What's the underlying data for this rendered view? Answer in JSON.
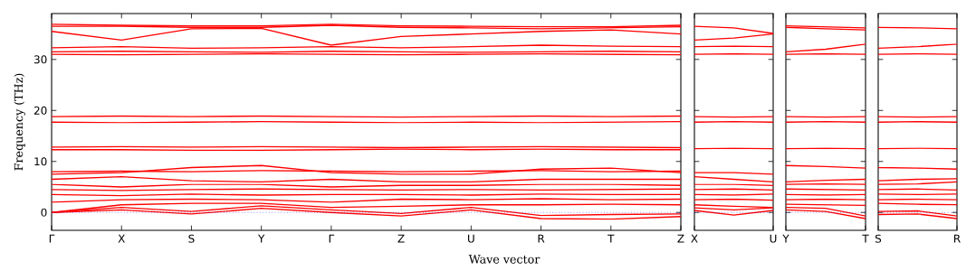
{
  "chart_data": [
    {
      "type": "line",
      "ylabel": "Frequency (THz)",
      "xlabel": "Wave vector",
      "color": "#ff0000",
      "marker": "none",
      "line_style": "solid",
      "categories": [
        "Γ",
        "X",
        "S",
        "Y",
        "Γ",
        "Z",
        "U",
        "R",
        "T",
        "Z"
      ],
      "ylim": [
        -3.5,
        39
      ],
      "yticks": [
        0,
        10,
        20,
        30
      ],
      "ref_lines": [
        {
          "axis": "y",
          "value": 0,
          "color": "#0000ff",
          "line_style": "dotted"
        }
      ],
      "series": [
        {
          "values": [
            0,
            0.5,
            -0.3,
            0.8,
            0,
            -0.7,
            0.5,
            -1.2,
            -1.3,
            -0.8
          ]
        },
        {
          "values": [
            0,
            1,
            0.2,
            1.3,
            0.5,
            -0.2,
            1,
            -0.6,
            -0.4,
            -0.3
          ]
        },
        {
          "values": [
            0,
            1.5,
            1.8,
            1.8,
            1,
            1.2,
            1.5,
            1.5,
            1.6,
            1.5
          ]
        },
        {
          "values": [
            2,
            2.5,
            2.6,
            2.5,
            2,
            2.6,
            2.5,
            2.7,
            2.5,
            2.6
          ]
        },
        {
          "values": [
            3.5,
            3.3,
            3.6,
            3.4,
            3.5,
            3.5,
            3.4,
            3.6,
            3.5,
            3.5
          ]
        },
        {
          "values": [
            4.5,
            4.3,
            4.5,
            4.6,
            4.5,
            4.4,
            4.5,
            4.4,
            4.5,
            4.6
          ]
        },
        {
          "values": [
            5.5,
            5,
            5.5,
            5.5,
            5,
            5.3,
            5.3,
            5.5,
            5.5,
            5.3
          ]
        },
        {
          "values": [
            6.5,
            7,
            6.2,
            6,
            6.5,
            6,
            6,
            6.5,
            6.5,
            6.5
          ]
        },
        {
          "values": [
            7.5,
            7.8,
            8.8,
            9.2,
            7.8,
            7.5,
            7.5,
            8.5,
            8.7,
            7.8
          ]
        },
        {
          "values": [
            8,
            8.1,
            8,
            8.2,
            8.1,
            8,
            8.1,
            8.2,
            8,
            8.1
          ]
        },
        {
          "values": [
            12.3,
            12.3,
            12.2,
            12.2,
            12.3,
            12.4,
            12.3,
            12.4,
            12.3,
            12.3
          ]
        },
        {
          "values": [
            12.8,
            12.9,
            12.8,
            12.9,
            12.8,
            12.7,
            12.8,
            12.9,
            12.8,
            12.7
          ]
        },
        {
          "values": [
            17.7,
            17.6,
            17.7,
            17.8,
            17.7,
            17.6,
            17.7,
            17.6,
            17.7,
            17.8
          ]
        },
        {
          "values": [
            18.8,
            18.9,
            18.8,
            18.9,
            18.8,
            18.7,
            18.8,
            18.9,
            18.8,
            18.9
          ]
        },
        {
          "values": [
            31,
            30.9,
            31,
            31.1,
            31,
            30.9,
            31,
            31.1,
            31,
            30.9
          ]
        },
        {
          "values": [
            31.5,
            31.6,
            31.5,
            31.4,
            31.6,
            31.5,
            31.4,
            31.5,
            31.6,
            31.5
          ]
        },
        {
          "values": [
            32.3,
            32.5,
            32.2,
            32.3,
            32.5,
            32.3,
            32.5,
            32.8,
            32.6,
            32.5
          ]
        },
        {
          "values": [
            35.5,
            33.8,
            36,
            36.1,
            32.8,
            34.5,
            35,
            35.5,
            35.8,
            35
          ]
        },
        {
          "values": [
            36.5,
            36.5,
            36.3,
            36.3,
            36.7,
            36.3,
            36.2,
            36,
            36.2,
            36.4
          ]
        },
        {
          "values": [
            36.9,
            36.7,
            36.6,
            36.6,
            36.9,
            36.6,
            36.5,
            36.4,
            36.4,
            36.7
          ]
        }
      ]
    },
    {
      "type": "line",
      "color": "#ff0000",
      "marker": "none",
      "line_style": "solid",
      "tick_labels": "x",
      "categories": [
        "X",
        null,
        "U"
      ],
      "ylim": [
        -3.5,
        39
      ],
      "yticks": [
        0,
        10,
        20,
        30
      ],
      "ref_lines": [
        {
          "axis": "y",
          "value": 0,
          "color": "#0000ff",
          "line_style": "dotted"
        }
      ],
      "series": [
        {
          "values": [
            0.4,
            -0.5,
            0.4
          ]
        },
        {
          "values": [
            0.9,
            0.5,
            0.9
          ]
        },
        {
          "values": [
            1.5,
            1.2,
            1
          ]
        },
        {
          "values": [
            2.5,
            2.6,
            2.4
          ]
        },
        {
          "values": [
            3.5,
            3.4,
            3.6
          ]
        },
        {
          "values": [
            4.5,
            4.6,
            4.4
          ]
        },
        {
          "values": [
            5.5,
            5.5,
            5.3
          ]
        },
        {
          "values": [
            7,
            6.5,
            6
          ]
        },
        {
          "values": [
            7.8,
            7.8,
            7.5
          ]
        },
        {
          "values": [
            12.5,
            12.6,
            12.5
          ]
        },
        {
          "values": [
            17.7,
            17.8,
            17.7
          ]
        },
        {
          "values": [
            18.8,
            18.7,
            18.8
          ]
        },
        {
          "values": [
            31,
            31.1,
            31
          ]
        },
        {
          "values": [
            32.5,
            32.6,
            32.5
          ]
        },
        {
          "values": [
            33.8,
            34.2,
            35
          ]
        },
        {
          "values": [
            36.5,
            36.2,
            35.1
          ]
        }
      ]
    },
    {
      "type": "line",
      "color": "#ff0000",
      "marker": "none",
      "line_style": "solid",
      "tick_labels": "x",
      "categories": [
        "Y",
        null,
        "T"
      ],
      "ylim": [
        -3.5,
        39
      ],
      "yticks": [
        0,
        10,
        20,
        30
      ],
      "ref_lines": [
        {
          "axis": "y",
          "value": 0,
          "color": "#0000ff",
          "line_style": "dotted"
        }
      ],
      "series": [
        {
          "values": [
            0.5,
            0.2,
            -1.2
          ]
        },
        {
          "values": [
            1,
            0.8,
            -0.7
          ]
        },
        {
          "values": [
            1.6,
            1.5,
            1.4
          ]
        },
        {
          "values": [
            2.5,
            2.6,
            2.5
          ]
        },
        {
          "values": [
            3.5,
            3.4,
            3.5
          ]
        },
        {
          "values": [
            4.6,
            4.5,
            4.4
          ]
        },
        {
          "values": [
            5.5,
            5.6,
            5.5
          ]
        },
        {
          "values": [
            6,
            6.3,
            6.5
          ]
        },
        {
          "values": [
            9.2,
            9,
            8.7
          ]
        },
        {
          "values": [
            12.5,
            12.6,
            12.5
          ]
        },
        {
          "values": [
            17.7,
            17.8,
            17.7
          ]
        },
        {
          "values": [
            18.8,
            18.7,
            18.8
          ]
        },
        {
          "values": [
            31,
            31.1,
            31
          ]
        },
        {
          "values": [
            31.5,
            32,
            33
          ]
        },
        {
          "values": [
            36.3,
            36,
            35.8
          ]
        },
        {
          "values": [
            36.6,
            36.4,
            36.2
          ]
        }
      ]
    },
    {
      "type": "line",
      "color": "#ff0000",
      "marker": "none",
      "line_style": "solid",
      "tick_labels": "x",
      "categories": [
        "S",
        null,
        "R"
      ],
      "ylim": [
        -3.5,
        39
      ],
      "yticks": [
        0,
        10,
        20,
        30
      ],
      "ref_lines": [
        {
          "axis": "y",
          "value": 0,
          "color": "#0000ff",
          "line_style": "dotted"
        }
      ],
      "series": [
        {
          "values": [
            -0.4,
            -0.3,
            -1.2
          ]
        },
        {
          "values": [
            0.2,
            0.3,
            -0.7
          ]
        },
        {
          "values": [
            1.8,
            1.6,
            1.5
          ]
        },
        {
          "values": [
            2.5,
            2.6,
            2.5
          ]
        },
        {
          "values": [
            3.6,
            3.5,
            3.6
          ]
        },
        {
          "values": [
            4.5,
            4.6,
            4.4
          ]
        },
        {
          "values": [
            5.5,
            5.6,
            6
          ]
        },
        {
          "values": [
            6.2,
            6.5,
            6.6
          ]
        },
        {
          "values": [
            8.8,
            8.7,
            8.5
          ]
        },
        {
          "values": [
            12.5,
            12.6,
            12.5
          ]
        },
        {
          "values": [
            17.7,
            17.8,
            17.7
          ]
        },
        {
          "values": [
            18.8,
            18.7,
            18.8
          ]
        },
        {
          "values": [
            31,
            31.1,
            31
          ]
        },
        {
          "values": [
            32.2,
            32.5,
            33
          ]
        },
        {
          "values": [
            36.3,
            36.2,
            36
          ]
        }
      ]
    }
  ]
}
